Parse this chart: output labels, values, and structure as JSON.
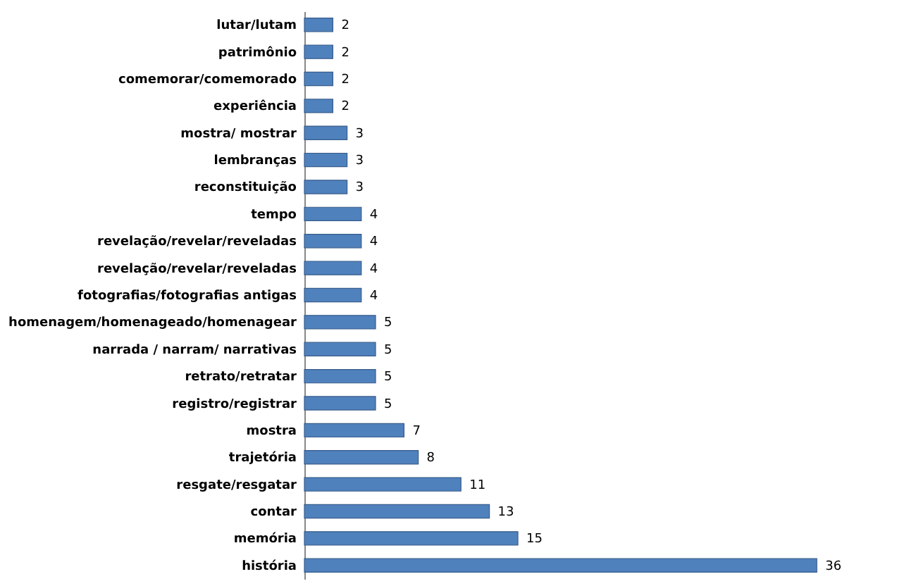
{
  "chart_data": {
    "type": "bar",
    "orientation": "horizontal",
    "data_labels": true,
    "categories": [
      "lutar/lutam",
      "patrimônio",
      "comemorar/comemorado",
      "experiência",
      "mostra/ mostrar",
      "lembranças",
      "reconstituição",
      "tempo",
      "revelação/revelar/reveladas",
      "revelação/revelar/reveladas",
      "fotografias/fotografias antigas",
      "homenagem/homenageado/homenagear",
      "narrada / narram/ narrativas",
      "retrato/retratar",
      "registro/registrar",
      "mostra",
      "trajetória",
      "resgate/resgatar",
      "contar",
      "memória",
      "história"
    ],
    "values": [
      2,
      2,
      2,
      2,
      3,
      3,
      3,
      4,
      4,
      4,
      4,
      5,
      5,
      5,
      5,
      7,
      8,
      11,
      13,
      15,
      36
    ],
    "color": "#4f81bd"
  }
}
